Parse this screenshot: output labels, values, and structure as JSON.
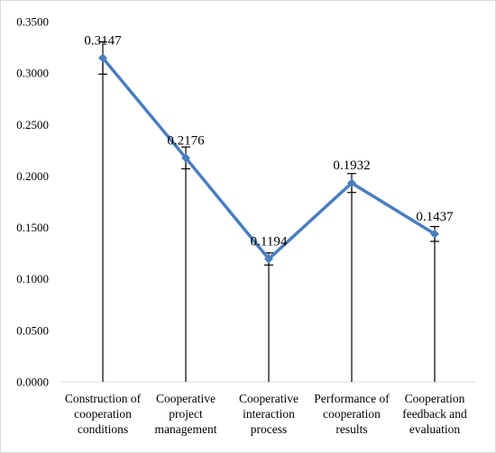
{
  "chart_data": {
    "type": "line",
    "categories": [
      [
        "Construction of",
        "cooperation",
        "conditions"
      ],
      [
        "Cooperative",
        "project",
        "management"
      ],
      [
        "Cooperative",
        "interaction",
        "process"
      ],
      [
        "Performance of",
        "cooperation",
        "results"
      ],
      [
        "Cooperation",
        "feedback and",
        "evaluation"
      ]
    ],
    "series": [
      {
        "values": [
          0.3147,
          0.2176,
          0.1194,
          0.1932,
          0.1437
        ],
        "labels": [
          "0.3147",
          "0.2176",
          "0.1194",
          "0.1932",
          "0.1437"
        ],
        "error_low": [
          0.299,
          0.207,
          0.1135,
          0.184,
          0.1365
        ],
        "error_high": [
          0.3304,
          0.2282,
          0.1253,
          0.2024,
          0.1509
        ],
        "color": "#4a7dbf"
      }
    ],
    "y_ticks": [
      "0.0000",
      "0.0500",
      "0.1000",
      "0.1500",
      "0.2000",
      "0.2500",
      "0.3000",
      "0.3500"
    ],
    "ylim": [
      0,
      0.35
    ],
    "grid": false,
    "title": "",
    "xlabel": "",
    "ylabel": ""
  }
}
